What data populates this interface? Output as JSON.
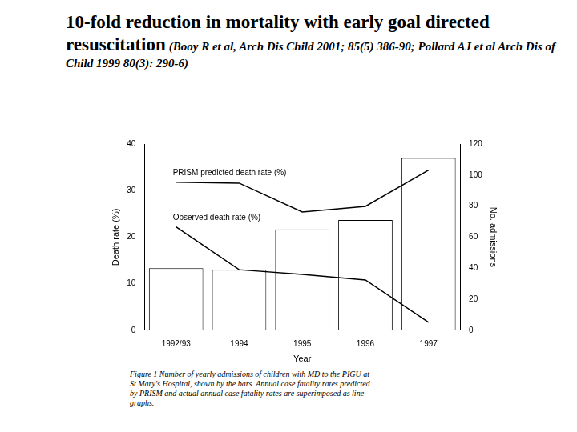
{
  "chart_data": {
    "type": "bar",
    "title": "10-fold reduction in mortality with early goal directed resuscitation",
    "subtitle": "(Booy R et al, Arch Dis Child 2001; 85(5) 386-90; Pollard AJ et al Arch Dis of Child 1999 80(3): 290-6)",
    "caption": "Figure 1   Number of yearly admissions of children with MD to the PIGU at St Mary's Hospital, shown by the bars. Annual case fatality rates predicted by PRISM and actual annual case fatality rates are superimposed as line graphs.",
    "x_label": "Year",
    "y_label": "Death rate (%)",
    "y2_label": "No. admissions",
    "categories": [
      "1992/93",
      "1994",
      "1995",
      "1996",
      "1997"
    ],
    "series": [
      {
        "type": "bar",
        "axis": "y2",
        "color": "#ffffff",
        "values": [
          40,
          39,
          65,
          71,
          111
        ]
      },
      {
        "name": "PRISM predicted death rate (%)",
        "type": "line",
        "color": "#000000",
        "values": [
          31.8,
          31.6,
          25.4,
          26.6,
          34.4
        ]
      },
      {
        "name": "Observed death rate (%)",
        "type": "line",
        "color": "#000000",
        "values": [
          22.2,
          13.0,
          12.0,
          10.8,
          1.7
        ]
      }
    ],
    "ylim": [
      0,
      40
    ],
    "yticks": [
      0,
      10,
      20,
      30,
      40
    ],
    "y2lim": [
      0,
      120
    ],
    "y2ticks": [
      0,
      20,
      40,
      60,
      80,
      100,
      120
    ],
    "grid": false
  }
}
